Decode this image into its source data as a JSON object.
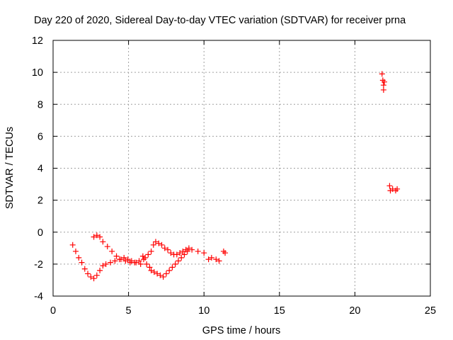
{
  "chart_data": {
    "type": "scatter",
    "title": "Day 220 of 2020, Sidereal Day-to-day VTEC variation (SDTVAR) for receiver prna",
    "xlabel": "GPS time / hours",
    "ylabel": "SDTVAR / TECUs",
    "xlim": [
      0,
      25
    ],
    "ylim": [
      -4,
      12
    ],
    "xticks": [
      0,
      5,
      10,
      15,
      20,
      25
    ],
    "yticks": [
      -4,
      -2,
      0,
      2,
      4,
      6,
      8,
      10,
      12
    ],
    "grid": true,
    "marker": "plus",
    "color": "#ff0000",
    "series": [
      {
        "name": "prna",
        "x": [
          1.3,
          1.5,
          1.7,
          1.9,
          2.1,
          2.3,
          2.5,
          2.7,
          2.9,
          3.1,
          3.3,
          3.5,
          3.8,
          4.1,
          4.4,
          4.7,
          4.95,
          5.2,
          5.5,
          5.8,
          6.0,
          6.2,
          6.4,
          6.5,
          6.7,
          6.9,
          7.1,
          7.3,
          7.5,
          7.7,
          7.9,
          8.1,
          8.3,
          8.5,
          8.7,
          8.9,
          9.2,
          9.6,
          10.0,
          2.7,
          2.9,
          3.1,
          3.3,
          3.6,
          3.9,
          4.2,
          4.5,
          4.8,
          5.1,
          5.4,
          5.7,
          5.95,
          6.1,
          6.3,
          6.5,
          6.65,
          6.8,
          7.0,
          7.2,
          7.4,
          7.6,
          7.8,
          8.0,
          8.2,
          8.4,
          8.6,
          8.8,
          9.0,
          10.3,
          10.5,
          10.8,
          11.0,
          11.3,
          11.4,
          21.8,
          21.85,
          21.9,
          21.95,
          21.9,
          22.3,
          22.35,
          22.5,
          22.7,
          22.8
        ],
        "y": [
          -0.8,
          -1.2,
          -1.6,
          -1.9,
          -2.3,
          -2.6,
          -2.8,
          -2.9,
          -2.7,
          -2.4,
          -2.1,
          -2.0,
          -1.9,
          -1.8,
          -1.7,
          -1.6,
          -1.7,
          -1.8,
          -1.9,
          -2.0,
          -1.7,
          -2.0,
          -2.2,
          -2.4,
          -2.5,
          -2.6,
          -2.7,
          -2.8,
          -2.6,
          -2.4,
          -2.2,
          -2.0,
          -1.8,
          -1.6,
          -1.4,
          -1.2,
          -1.1,
          -1.2,
          -1.3,
          -0.3,
          -0.2,
          -0.3,
          -0.6,
          -0.9,
          -1.2,
          -1.5,
          -1.7,
          -1.8,
          -1.9,
          -1.9,
          -1.8,
          -1.5,
          -1.6,
          -1.4,
          -1.2,
          -0.8,
          -0.6,
          -0.7,
          -0.8,
          -1.0,
          -1.1,
          -1.3,
          -1.4,
          -1.4,
          -1.3,
          -1.2,
          -1.1,
          -1.0,
          -1.7,
          -1.6,
          -1.7,
          -1.8,
          -1.2,
          -1.3,
          9.9,
          9.5,
          9.2,
          9.4,
          8.9,
          2.9,
          2.6,
          2.7,
          2.6,
          2.7
        ]
      }
    ]
  }
}
